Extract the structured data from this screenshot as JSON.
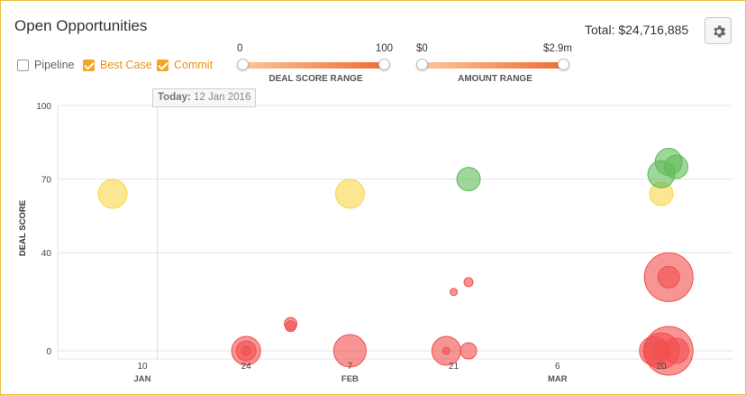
{
  "header": {
    "title": "Open Opportunities",
    "total": "Total: $24,716,885"
  },
  "filters": [
    {
      "label": "Pipeline",
      "checked": false
    },
    {
      "label": "Best Case",
      "checked": true
    },
    {
      "label": "Commit",
      "checked": true
    }
  ],
  "deal_score_range": {
    "min_label": "0",
    "max_label": "100",
    "label": "DEAL SCORE RANGE"
  },
  "amount_range": {
    "min_label": "$0",
    "max_label": "$2.9m",
    "label": "AMOUNT RANGE"
  },
  "today": {
    "prefix": "Today:",
    "date": "12 Jan 2016"
  },
  "colors": {
    "border": "#f0c04a",
    "checkbox": "#f2a623",
    "best_case": "#f9d748",
    "commit": "#5fba57",
    "pipeline": "#f24f4f"
  },
  "chart_data": {
    "type": "scatter",
    "title": "",
    "xlabel": "",
    "ylabel": "DEAL SCORE",
    "ylim": [
      0,
      100
    ],
    "y_ticks": [
      "100",
      "70",
      "40",
      "0"
    ],
    "x_ticks": [
      {
        "day": "10",
        "month": "JAN",
        "date": "2016-01-10"
      },
      {
        "day": "24",
        "month": "",
        "date": "2016-01-24"
      },
      {
        "day": "7",
        "month": "FEB",
        "date": "2016-02-07"
      },
      {
        "day": "21",
        "month": "",
        "date": "2016-02-21"
      },
      {
        "day": "6",
        "month": "MAR",
        "date": "2016-03-06"
      },
      {
        "day": "20",
        "month": "",
        "date": "2016-03-20"
      }
    ],
    "today_marker": "2016-01-12",
    "grid": true,
    "series": [
      {
        "category": "Best Case",
        "color": "#f9d748",
        "points": [
          {
            "date": "2016-01-06",
            "score": 64,
            "size": 16
          },
          {
            "date": "2016-02-07",
            "score": 64,
            "size": 16
          },
          {
            "date": "2016-03-20",
            "score": 64,
            "size": 13
          }
        ]
      },
      {
        "category": "Commit",
        "color": "#5fba57",
        "points": [
          {
            "date": "2016-02-23",
            "score": 70,
            "size": 13
          },
          {
            "date": "2016-03-20",
            "score": 72,
            "size": 15
          },
          {
            "date": "2016-03-21",
            "score": 77,
            "size": 15
          },
          {
            "date": "2016-03-22",
            "score": 75,
            "size": 13
          }
        ]
      },
      {
        "category": "Pipeline",
        "color": "#f24f4f",
        "points": [
          {
            "date": "2016-01-24",
            "score": 0,
            "size": 16
          },
          {
            "date": "2016-01-24",
            "score": 0,
            "size": 11
          },
          {
            "date": "2016-01-24",
            "score": 0,
            "size": 5
          },
          {
            "date": "2016-01-30",
            "score": 11,
            "size": 7
          },
          {
            "date": "2016-01-30",
            "score": 10,
            "size": 6
          },
          {
            "date": "2016-02-07",
            "score": 0,
            "size": 18
          },
          {
            "date": "2016-02-20",
            "score": 0,
            "size": 16
          },
          {
            "date": "2016-02-21",
            "score": 24,
            "size": 4
          },
          {
            "date": "2016-02-23",
            "score": 28,
            "size": 5
          },
          {
            "date": "2016-02-23",
            "score": 0,
            "size": 9
          },
          {
            "date": "2016-02-20",
            "score": 0,
            "size": 4
          },
          {
            "date": "2016-03-21",
            "score": 30,
            "size": 27
          },
          {
            "date": "2016-03-21",
            "score": 30,
            "size": 12
          },
          {
            "date": "2016-03-21",
            "score": 0,
            "size": 27
          },
          {
            "date": "2016-03-20",
            "score": 0,
            "size": 20
          },
          {
            "date": "2016-03-19",
            "score": 0,
            "size": 16
          },
          {
            "date": "2016-03-22",
            "score": 0,
            "size": 14
          },
          {
            "date": "2016-03-20",
            "score": 0,
            "size": 11
          }
        ]
      }
    ]
  }
}
